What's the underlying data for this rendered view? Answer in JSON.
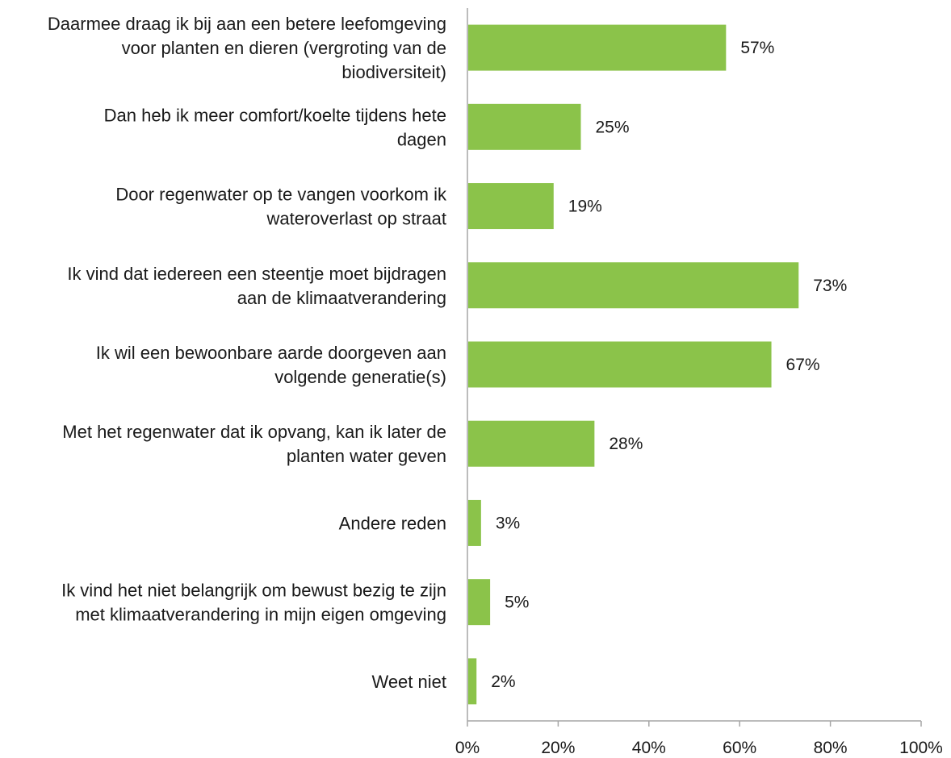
{
  "chart_data": {
    "type": "bar",
    "orientation": "horizontal",
    "categories": [
      [
        "Daarmee draag ik bij aan een betere leefomgeving",
        "voor planten en dieren (vergroting van de",
        "biodiversiteit)"
      ],
      [
        "Dan heb ik meer comfort/koelte tijdens hete",
        "dagen"
      ],
      [
        "Door regenwater op te vangen voorkom ik",
        "wateroverlast op straat"
      ],
      [
        "Ik vind dat iedereen een steentje moet bijdragen",
        "aan de klimaatverandering"
      ],
      [
        "Ik wil een bewoonbare aarde doorgeven aan",
        "volgende generatie(s)"
      ],
      [
        "Met het regenwater dat ik opvang, kan ik later de",
        "planten water geven"
      ],
      [
        "Andere reden"
      ],
      [
        "Ik vind het niet belangrijk om bewust bezig te zijn",
        "met klimaatverandering in mijn eigen omgeving"
      ],
      [
        "Weet niet"
      ]
    ],
    "values": [
      57,
      25,
      19,
      73,
      67,
      28,
      3,
      5,
      2
    ],
    "data_labels": [
      "57%",
      "25%",
      "19%",
      "73%",
      "67%",
      "28%",
      "3%",
      "5%",
      "2%"
    ],
    "xlim": [
      0,
      100
    ],
    "xticks": [
      0,
      20,
      40,
      60,
      80,
      100
    ],
    "xtick_labels": [
      "0%",
      "20%",
      "40%",
      "60%",
      "80%",
      "100%"
    ],
    "title": "",
    "xlabel": "",
    "ylabel": "",
    "bar_color": "#8bc34a",
    "axis_color": "#a6a6a6",
    "grid": false,
    "legend": "none"
  }
}
